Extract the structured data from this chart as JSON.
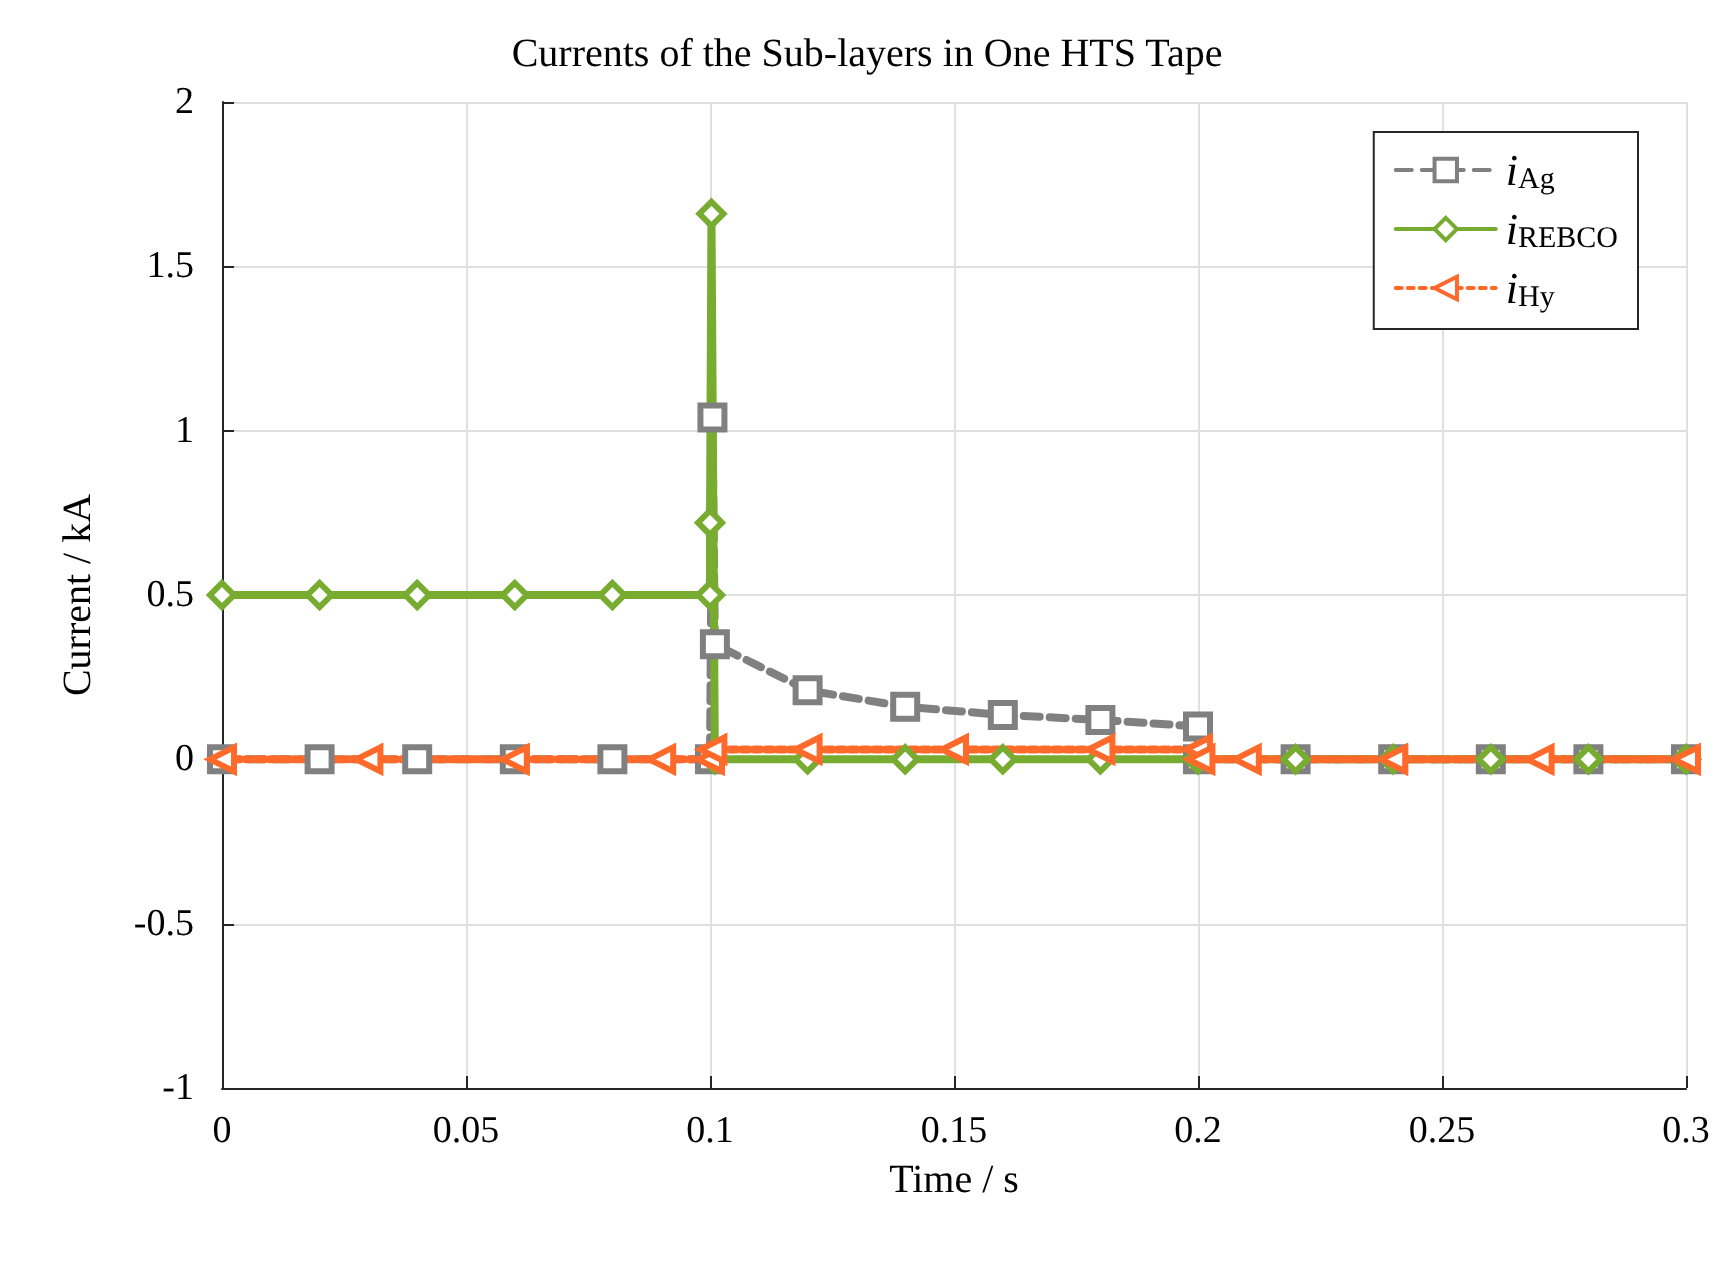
{
  "chart_data": {
    "type": "line",
    "title": "Currents of the Sub-layers in One HTS Tape",
    "xlabel": "Time / s",
    "ylabel": "Current / kA",
    "xlim": [
      0,
      0.3
    ],
    "xticks": [
      0,
      0.05,
      0.1,
      0.15,
      0.2,
      0.25,
      0.3
    ],
    "ylim": [
      -1,
      2
    ],
    "yticks": [
      -1,
      -0.5,
      0,
      0.5,
      1,
      1.5,
      2
    ],
    "grid": true,
    "legend": "top right",
    "series": [
      {
        "name": "i$_{Ag}$",
        "color": "#808080",
        "marker": "square",
        "line_style": "dashed",
        "x": [
          0,
          0.02,
          0.04,
          0.06,
          0.08,
          0.1,
          0.1005,
          0.101,
          0.12,
          0.14,
          0.16,
          0.18,
          0.2,
          0.2,
          0.22,
          0.24,
          0.26,
          0.28,
          0.3
        ],
        "values": [
          0,
          0,
          0,
          0,
          0,
          0,
          1.04,
          0.35,
          0.21,
          0.16,
          0.135,
          0.12,
          0.1,
          0,
          0,
          0,
          0,
          0,
          0
        ]
      },
      {
        "name": "i$_{REBCO}$",
        "color": "#77ac30",
        "marker": "diamond",
        "line_style": "solid",
        "x": [
          0,
          0.02,
          0.04,
          0.06,
          0.08,
          0.1,
          0.1,
          0.1003,
          0.101,
          0.12,
          0.14,
          0.16,
          0.18,
          0.2,
          0.22,
          0.24,
          0.26,
          0.28,
          0.3
        ],
        "values": [
          0.5,
          0.5,
          0.5,
          0.5,
          0.5,
          0.5,
          0.72,
          1.66,
          0,
          0,
          0,
          0,
          0,
          0,
          0,
          0,
          0,
          0,
          0
        ]
      },
      {
        "name": "i$_{Hy}$",
        "color": "#ff6929",
        "marker": "triangle",
        "line_style": "dotted",
        "x": [
          0,
          0.03,
          0.06,
          0.09,
          0.1,
          0.1005,
          0.12,
          0.15,
          0.18,
          0.2,
          0.2005,
          0.21,
          0.24,
          0.27,
          0.3
        ],
        "values": [
          0,
          0,
          0,
          0,
          0,
          0.03,
          0.03,
          0.03,
          0.03,
          0.03,
          0,
          0,
          0,
          0,
          0
        ]
      }
    ]
  }
}
